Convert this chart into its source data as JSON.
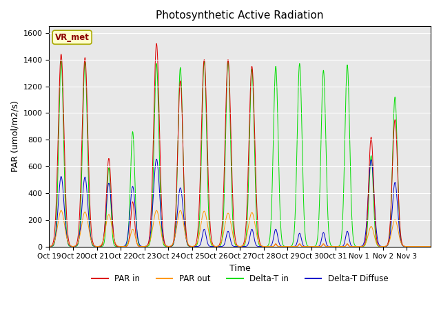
{
  "title": "Photosynthetic Active Radiation",
  "ylabel": "PAR (umol/m2/s)",
  "xlabel": "Time",
  "annotation": "VR_met",
  "background_color": "#e8e8e8",
  "colors": {
    "PAR_in": "#dd0000",
    "PAR_out": "#ff9900",
    "Delta_T_in": "#00dd00",
    "Delta_T_Diffuse": "#0000cc"
  },
  "legend_labels": [
    "PAR in",
    "PAR out",
    "Delta-T in",
    "Delta-T Diffuse"
  ],
  "xtick_labels": [
    "Oct 19",
    "Oct 20",
    "Oct 21",
    "Oct 22",
    "Oct 23",
    "Oct 24",
    "Oct 25",
    "Oct 26",
    "Oct 27",
    "Oct 28",
    "Oct 29",
    "Oct 30",
    "Oct 31",
    "Nov 1",
    "Nov 2",
    "Nov 3"
  ],
  "ylim": [
    0,
    1650
  ],
  "yticks": [
    0,
    200,
    400,
    600,
    800,
    1000,
    1200,
    1400,
    1600
  ],
  "days": 16,
  "pts_per_day": 288,
  "day_peaks_PAR_in": [
    1440,
    1415,
    660,
    335,
    1520,
    1240,
    1400,
    1400,
    1350,
    20,
    20,
    20,
    20,
    820,
    950,
    0
  ],
  "day_peaks_PAR_out": [
    270,
    260,
    240,
    130,
    270,
    270,
    265,
    250,
    255,
    20,
    20,
    20,
    20,
    150,
    200,
    0
  ],
  "day_peaks_DT_in": [
    1390,
    1380,
    590,
    860,
    1370,
    1340,
    1390,
    1390,
    1330,
    1350,
    1370,
    1320,
    1360,
    680,
    1120,
    0
  ],
  "day_peaks_DT_diff": [
    525,
    520,
    475,
    450,
    655,
    440,
    130,
    115,
    130,
    130,
    100,
    105,
    115,
    650,
    480,
    0
  ],
  "day_width_PAR_in": [
    0.12,
    0.12,
    0.1,
    0.08,
    0.12,
    0.11,
    0.12,
    0.12,
    0.12,
    0.04,
    0.04,
    0.04,
    0.04,
    0.1,
    0.11,
    0.01
  ],
  "day_width_PAR_out": [
    0.14,
    0.14,
    0.13,
    0.1,
    0.14,
    0.14,
    0.14,
    0.14,
    0.14,
    0.04,
    0.04,
    0.04,
    0.04,
    0.12,
    0.13,
    0.01
  ],
  "day_width_DT_in": [
    0.1,
    0.1,
    0.08,
    0.09,
    0.1,
    0.1,
    0.1,
    0.1,
    0.1,
    0.1,
    0.1,
    0.1,
    0.1,
    0.09,
    0.1,
    0.01
  ],
  "day_width_DT_diff": [
    0.12,
    0.12,
    0.11,
    0.11,
    0.13,
    0.12,
    0.08,
    0.08,
    0.08,
    0.08,
    0.07,
    0.07,
    0.07,
    0.12,
    0.11,
    0.01
  ],
  "day_center_offset": [
    0.0,
    0.0,
    0.0,
    0.0,
    0.0,
    0.0,
    0.0,
    0.0,
    0.0,
    0.0,
    0.0,
    0.0,
    0.0,
    0.0,
    0.0,
    0.0
  ]
}
